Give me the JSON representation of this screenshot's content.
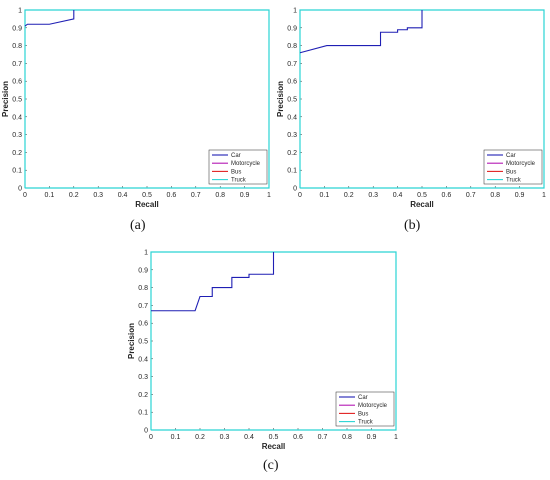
{
  "captions": [
    "(a)",
    "(b)",
    "(c)"
  ],
  "chart_data": [
    {
      "id": "a",
      "type": "line",
      "xlabel": "Recall",
      "ylabel": "Precision",
      "xlim": [
        0,
        1
      ],
      "ylim": [
        0,
        1
      ],
      "xticks": [
        "0",
        "0.1",
        "0.2",
        "0.3",
        "0.4",
        "0.5",
        "0.6",
        "0.7",
        "0.8",
        "0.9",
        "1"
      ],
      "yticks": [
        "0",
        "0.1",
        "0.2",
        "0.3",
        "0.4",
        "0.5",
        "0.6",
        "0.7",
        "0.8",
        "0.9",
        "1"
      ],
      "grid": false,
      "legend_position": "bottom-right",
      "series": [
        {
          "name": "Car",
          "color": "#1f1fb4",
          "x": [
            0,
            0.01,
            0.1,
            0.2,
            0.2,
            0.2
          ],
          "y": [
            0.91,
            0.92,
            0.92,
            0.95,
            0.95,
            1.0
          ]
        },
        {
          "name": "Motorcycle",
          "color": "#b418b4",
          "x": [],
          "y": []
        },
        {
          "name": "Bus",
          "color": "#e02020",
          "x": [],
          "y": []
        },
        {
          "name": "Truck",
          "color": "#2ad4d4",
          "x": [
            0,
            0,
            1,
            1,
            0
          ],
          "y": [
            0,
            1,
            1,
            0,
            0
          ]
        }
      ]
    },
    {
      "id": "b",
      "type": "line",
      "xlabel": "Recall",
      "ylabel": "Precision",
      "xlim": [
        0,
        1
      ],
      "ylim": [
        0,
        1
      ],
      "xticks": [
        "0",
        "0.1",
        "0.2",
        "0.3",
        "0.4",
        "0.5",
        "0.6",
        "0.7",
        "0.8",
        "0.9",
        "1"
      ],
      "yticks": [
        "0",
        "0.1",
        "0.2",
        "0.3",
        "0.4",
        "0.5",
        "0.6",
        "0.7",
        "0.8",
        "0.9",
        "1"
      ],
      "grid": false,
      "legend_position": "bottom-right",
      "series": [
        {
          "name": "Car",
          "color": "#1f1fb4",
          "x": [
            0,
            0.11,
            0.33,
            0.33,
            0.4,
            0.4,
            0.44,
            0.44,
            0.5,
            0.5
          ],
          "y": [
            0.76,
            0.8,
            0.8,
            0.875,
            0.875,
            0.889,
            0.889,
            0.9,
            0.9,
            1.0
          ]
        },
        {
          "name": "Motorcycle",
          "color": "#b418b4",
          "x": [],
          "y": []
        },
        {
          "name": "Bus",
          "color": "#e02020",
          "x": [],
          "y": []
        },
        {
          "name": "Truck",
          "color": "#2ad4d4",
          "x": [
            0,
            0,
            1,
            1,
            0
          ],
          "y": [
            0,
            1,
            1,
            0,
            0
          ]
        }
      ]
    },
    {
      "id": "c",
      "type": "line",
      "xlabel": "Recall",
      "ylabel": "Precision",
      "xlim": [
        0,
        1
      ],
      "ylim": [
        0,
        1
      ],
      "xticks": [
        "0",
        "0.1",
        "0.2",
        "0.3",
        "0.4",
        "0.5",
        "0.6",
        "0.7",
        "0.8",
        "0.9",
        "1"
      ],
      "yticks": [
        "0",
        "0.1",
        "0.2",
        "0.3",
        "0.4",
        "0.5",
        "0.6",
        "0.7",
        "0.8",
        "0.9",
        "1"
      ],
      "grid": false,
      "legend_position": "bottom-right",
      "series": [
        {
          "name": "Car",
          "color": "#1f1fb4",
          "x": [
            0,
            0.18,
            0.2,
            0.25,
            0.25,
            0.33,
            0.33,
            0.4,
            0.4,
            0.5,
            0.5
          ],
          "y": [
            0.67,
            0.67,
            0.75,
            0.75,
            0.8,
            0.8,
            0.857,
            0.857,
            0.875,
            0.875,
            1.0
          ]
        },
        {
          "name": "Motorcycle",
          "color": "#b418b4",
          "x": [],
          "y": []
        },
        {
          "name": "Bus",
          "color": "#e02020",
          "x": [],
          "y": []
        },
        {
          "name": "Truck",
          "color": "#2ad4d4",
          "x": [
            0,
            0,
            1,
            1,
            0
          ],
          "y": [
            0,
            1,
            1,
            0,
            0
          ]
        }
      ]
    }
  ]
}
